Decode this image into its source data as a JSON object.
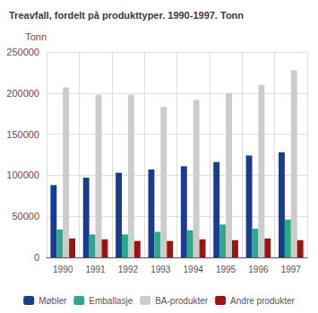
{
  "chart_data": {
    "type": "bar",
    "title": "Treavfall, fordelt på produkttyper. 1990-1997. Tonn",
    "ylabel": "Tonn",
    "categories": [
      "1990",
      "1991",
      "1992",
      "1993",
      "1994",
      "1995",
      "1996",
      "1997"
    ],
    "series": [
      {
        "name": "Møbler",
        "color": "#1a3c8f",
        "values": [
          88000,
          97000,
          103000,
          107000,
          111000,
          116000,
          124000,
          128000
        ]
      },
      {
        "name": "Emballasje",
        "color": "#2aaa8a",
        "values": [
          34000,
          28000,
          28000,
          31000,
          33000,
          40000,
          35000,
          46000
        ]
      },
      {
        "name": "BA-produkter",
        "color": "#cccccc",
        "values": [
          207000,
          198000,
          198000,
          183000,
          192000,
          200000,
          210000,
          228000
        ]
      },
      {
        "name": "Andre produkter",
        "color": "#9b1515",
        "values": [
          23000,
          22000,
          20000,
          20000,
          22000,
          21000,
          23000,
          21000
        ]
      }
    ],
    "ylim": [
      0,
      250000
    ],
    "yticks": [
      0,
      50000,
      100000,
      150000,
      200000,
      250000
    ],
    "grid": true,
    "legend": "bottom"
  }
}
